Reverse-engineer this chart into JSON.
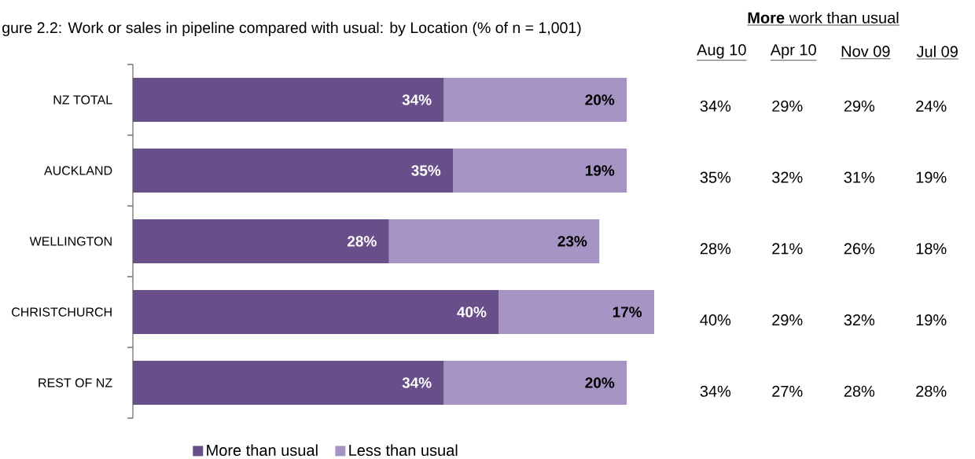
{
  "chart_data": [
    {
      "type": "bar",
      "orientation": "horizontal",
      "stacked": true,
      "title": "gure 2.2: Work or sales in pipeline compared with usual: by Location (% of n = 1,001)",
      "categories": [
        "NZ TOTAL",
        "AUCKLAND",
        "WELLINGTON",
        "CHRISTCHURCH",
        "REST OF NZ"
      ],
      "series": [
        {
          "name": "More than usual",
          "color": "#684f8a",
          "values": [
            34,
            35,
            28,
            40,
            34
          ],
          "value_labels": [
            "34%",
            "35%",
            "28%",
            "40%",
            "34%"
          ]
        },
        {
          "name": "Less than usual",
          "color": "#a694c4",
          "values": [
            20,
            19,
            23,
            17,
            20
          ],
          "value_labels": [
            "20%",
            "19%",
            "23%",
            "17%",
            "20%"
          ]
        }
      ],
      "legend": "bottom",
      "tick_labels": "y"
    },
    {
      "type": "other",
      "title": "**More** work than usual",
      "categories": [
        "Aug 10",
        "Apr 10",
        "Nov 09",
        "Jul 09"
      ],
      "annotations": [
        "34%",
        "29%",
        "29%",
        "24%",
        "35%",
        "32%",
        "31%",
        "19%",
        "28%",
        "21%",
        "26%",
        "18%",
        "40%",
        "29%",
        "32%",
        "19%",
        "34%",
        "27%",
        "28%",
        "28%"
      ]
    }
  ]
}
